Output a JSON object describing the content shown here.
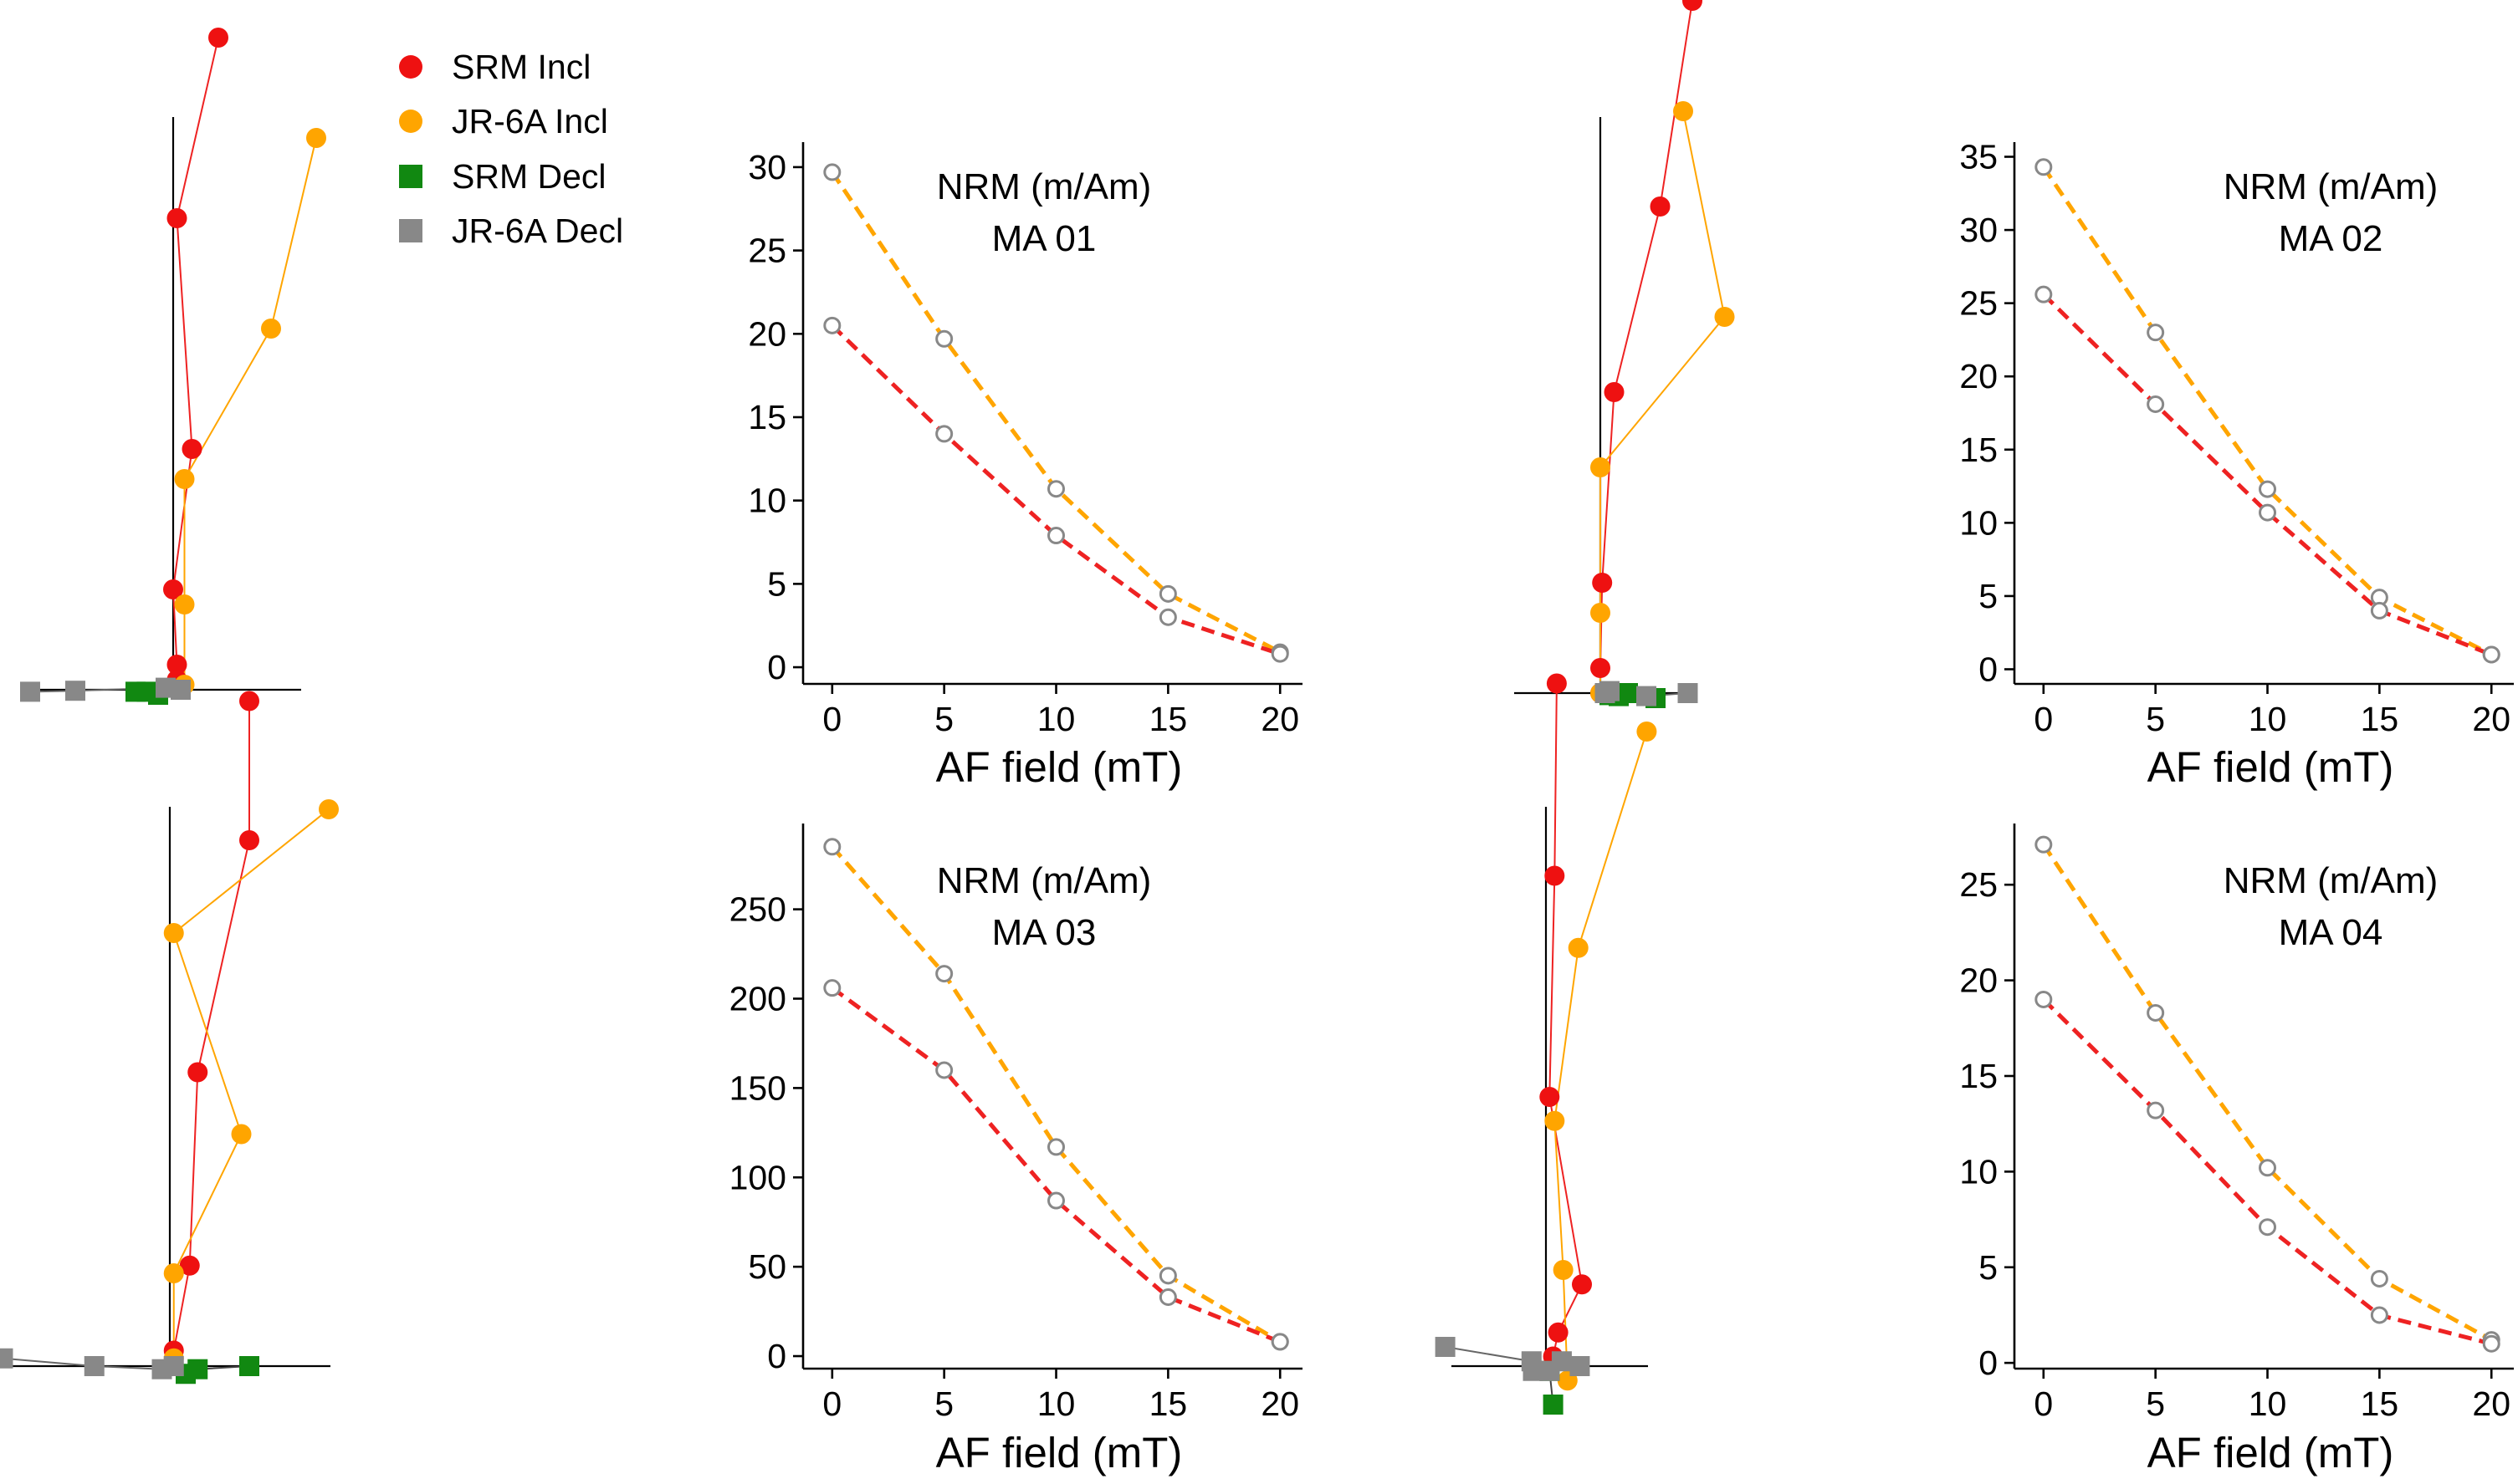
{
  "legend": {
    "items": [
      {
        "label": "SRM Incl",
        "color": "#ee1111",
        "marker": "circle"
      },
      {
        "label": "JR-6A Incl",
        "color": "#ffa500",
        "marker": "circle"
      },
      {
        "label": "SRM Decl",
        "color": "#118811",
        "marker": "square"
      },
      {
        "label": "JR-6A Decl",
        "color": "#888888",
        "marker": "square"
      }
    ]
  },
  "colors": {
    "srm_line": "#ee2222",
    "jr6a_line": "#ffa500",
    "marker_outline": "#888888",
    "srm_incl": "#ee1111",
    "jr6a_incl": "#ffa500",
    "srm_decl": "#118811",
    "jr6a_decl": "#888888"
  },
  "chart_data": [
    {
      "type": "line",
      "annotation_line1": "NRM (m/Am)",
      "annotation_line2": "MA 01",
      "xlabel": "AF field (mT)",
      "x": [
        0,
        5,
        10,
        15,
        20
      ],
      "xticks": [
        0,
        5,
        10,
        15,
        20
      ],
      "yticks": [
        0,
        5,
        10,
        15,
        20,
        25,
        30
      ],
      "ylim": [
        -1,
        31.5
      ],
      "xlim": [
        -1.3,
        21
      ],
      "series": [
        {
          "key": "jr6a",
          "values": [
            29.7,
            19.7,
            10.7,
            4.4,
            0.9
          ]
        },
        {
          "key": "srm",
          "values": [
            20.5,
            14.0,
            7.9,
            3.0,
            0.8
          ]
        }
      ]
    },
    {
      "type": "line",
      "annotation_line1": "NRM (m/Am)",
      "annotation_line2": "MA 02",
      "xlabel": "AF field (mT)",
      "x": [
        0,
        5,
        10,
        15,
        20
      ],
      "xticks": [
        0,
        5,
        10,
        15,
        20
      ],
      "yticks": [
        0,
        5,
        10,
        15,
        20,
        25,
        30,
        35
      ],
      "ylim": [
        -1,
        36
      ],
      "xlim": [
        -1.3,
        21
      ],
      "series": [
        {
          "key": "jr6a",
          "values": [
            34.3,
            23.0,
            12.3,
            4.9,
            1.0
          ]
        },
        {
          "key": "srm",
          "values": [
            25.6,
            18.1,
            10.7,
            4.0,
            1.0
          ]
        }
      ]
    },
    {
      "type": "line",
      "annotation_line1": "NRM (m/Am)",
      "annotation_line2": "MA 03",
      "xlabel": "AF field (mT)",
      "x": [
        0,
        5,
        10,
        15,
        20
      ],
      "xticks": [
        0,
        5,
        10,
        15,
        20
      ],
      "yticks": [
        0,
        50,
        100,
        150,
        200,
        250
      ],
      "ylim": [
        -7,
        298
      ],
      "xlim": [
        -1.3,
        21
      ],
      "series": [
        {
          "key": "jr6a",
          "values": [
            285,
            214,
            117,
            45,
            8
          ]
        },
        {
          "key": "srm",
          "values": [
            206,
            160,
            87,
            33,
            8
          ]
        }
      ]
    },
    {
      "type": "line",
      "annotation_line1": "NRM (m/Am)",
      "annotation_line2": "MA 04",
      "xlabel": "AF field (mT)",
      "x": [
        0,
        5,
        10,
        15,
        20
      ],
      "xticks": [
        0,
        5,
        10,
        15,
        20
      ],
      "yticks": [
        0,
        5,
        10,
        15,
        20,
        25
      ],
      "ylim": [
        -0.3,
        28.2
      ],
      "xlim": [
        -1.3,
        21
      ],
      "series": [
        {
          "key": "jr6a",
          "values": [
            27.1,
            18.3,
            10.2,
            4.4,
            1.2
          ]
        },
        {
          "key": "srm",
          "values": [
            19.0,
            13.2,
            7.1,
            2.5,
            1.0
          ]
        }
      ]
    },
    {
      "type": "scatter",
      "xlim": [
        -2.2,
        2.0
      ],
      "ylim": [
        -0.3,
        6.5
      ],
      "series": [
        {
          "key": "srm_incl",
          "x": [
            0.6,
            0.05,
            0.25,
            0.0,
            0.05,
            0.05
          ],
          "y": [
            6.5,
            4.7,
            2.4,
            1.0,
            0.25,
            0.1
          ]
        },
        {
          "key": "jr6a_incl",
          "x": [
            1.9,
            1.3,
            0.15,
            0.15,
            0.15,
            0.05
          ],
          "y": [
            5.5,
            3.6,
            2.1,
            0.85,
            0.05,
            0.0
          ]
        },
        {
          "key": "srm_decl",
          "x": [
            -0.5,
            -0.35,
            -0.2
          ],
          "y": [
            -0.02,
            -0.02,
            -0.05
          ]
        },
        {
          "key": "jr6a_decl",
          "x": [
            -1.9,
            -1.3,
            -0.1,
            0.1
          ],
          "y": [
            -0.02,
            -0.01,
            0.02,
            0.0
          ]
        }
      ]
    },
    {
      "type": "scatter",
      "xlim": [
        -1.6,
        1.4
      ],
      "ylim": [
        -0.3,
        7.0
      ],
      "series": [
        {
          "key": "srm_incl",
          "x": [
            1.0,
            0.65,
            0.15,
            0.02,
            0.0,
            0.0
          ],
          "y": [
            6.9,
            4.85,
            3.0,
            1.1,
            0.25,
            0.0
          ]
        },
        {
          "key": "jr6a_incl",
          "x": [
            0.9,
            1.35,
            0.0,
            0.0,
            0.0,
            0.05
          ],
          "y": [
            5.8,
            3.75,
            2.25,
            0.8,
            0.0,
            0.0
          ]
        },
        {
          "key": "srm_decl",
          "x": [
            0.6,
            0.3,
            0.2,
            0.1
          ],
          "y": [
            -0.05,
            0.0,
            -0.03,
            -0.02
          ]
        },
        {
          "key": "jr6a_decl",
          "x": [
            0.95,
            0.5,
            0.1,
            0.05
          ],
          "y": [
            0.0,
            -0.03,
            0.02,
            0.0
          ]
        }
      ]
    },
    {
      "type": "scatter",
      "xlim": [
        -2.1,
        2.0
      ],
      "ylim": [
        -0.3,
        4.3
      ],
      "series": [
        {
          "key": "srm_incl",
          "x": [
            1.0,
            1.0,
            0.35,
            0.25,
            0.05
          ],
          "y": [
            4.3,
            3.4,
            1.9,
            0.65,
            0.1
          ]
        },
        {
          "key": "jr6a_incl",
          "x": [
            2.0,
            0.05,
            0.9,
            0.05,
            0.05
          ],
          "y": [
            3.6,
            2.8,
            1.5,
            0.6,
            0.05
          ]
        },
        {
          "key": "srm_decl",
          "x": [
            1.0,
            0.35,
            0.2
          ],
          "y": [
            0.0,
            -0.02,
            -0.05
          ]
        },
        {
          "key": "jr6a_decl",
          "x": [
            -2.1,
            -0.95,
            -0.1,
            0.05
          ],
          "y": [
            0.05,
            0.0,
            -0.02,
            0.0
          ]
        }
      ]
    },
    {
      "type": "scatter",
      "xlim": [
        -1.4,
        1.4
      ],
      "ylim": [
        -0.4,
        7.2
      ],
      "series": [
        {
          "key": "srm_incl",
          "x": [
            0.15,
            0.12,
            0.05,
            0.5,
            0.17,
            0.1
          ],
          "y": [
            7.1,
            5.1,
            2.8,
            0.85,
            0.35,
            0.1
          ]
        },
        {
          "key": "jr6a_incl",
          "x": [
            1.4,
            0.45,
            0.12,
            0.24,
            0.3
          ],
          "y": [
            6.6,
            4.35,
            2.55,
            1.0,
            -0.15
          ]
        },
        {
          "key": "srm_decl",
          "x": [
            0.1,
            0.05
          ],
          "y": [
            -0.4,
            -0.05
          ]
        },
        {
          "key": "jr6a_decl",
          "x": [
            -1.4,
            -0.2,
            0.05,
            0.47,
            0.22,
            -0.18
          ],
          "y": [
            0.2,
            0.05,
            -0.05,
            0.0,
            0.05,
            -0.05
          ]
        }
      ]
    }
  ]
}
